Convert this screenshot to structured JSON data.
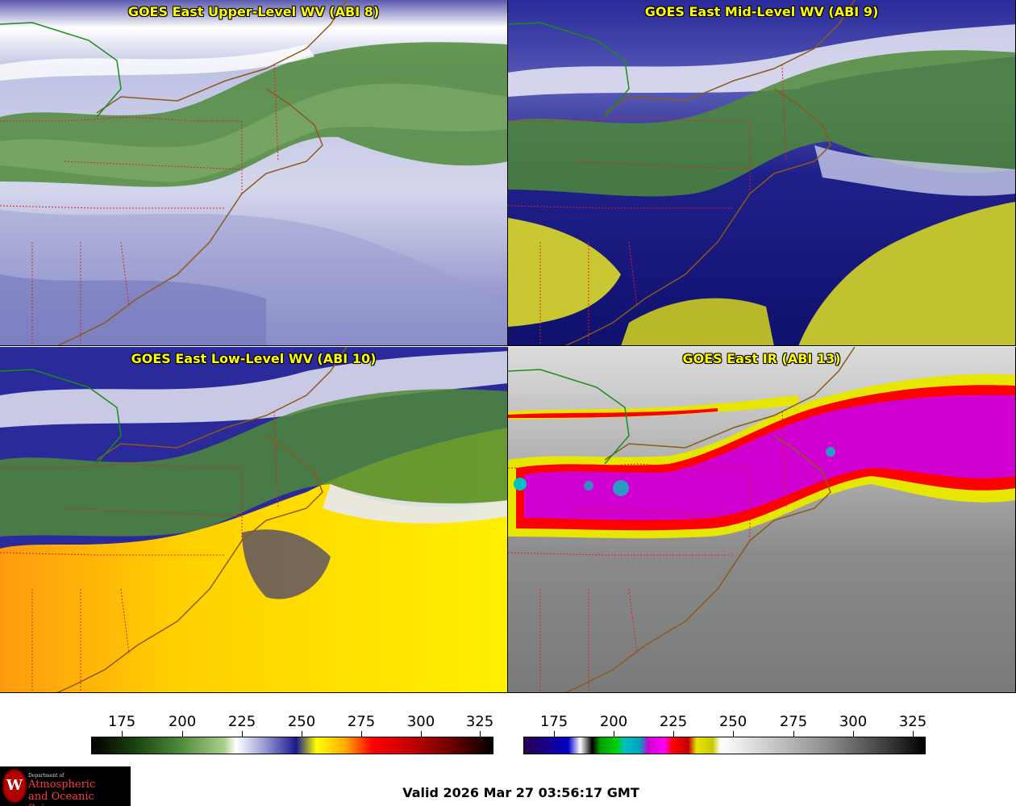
{
  "panels": [
    {
      "title": "GOES East Upper-Level WV (ABI 8)"
    },
    {
      "title": "GOES East Mid-Level WV (ABI 9)"
    },
    {
      "title": "GOES East Low-Level WV (ABI 10)"
    },
    {
      "title": "GOES East IR (ABI 13)"
    }
  ],
  "colorbars": {
    "wv": {
      "ticks": [
        "175",
        "200",
        "225",
        "250",
        "275",
        "300",
        "325"
      ]
    },
    "ir": {
      "ticks": [
        "175",
        "200",
        "225",
        "250",
        "275",
        "300",
        "325"
      ]
    }
  },
  "logo": {
    "line1": "Department of",
    "line2": "Atmospheric",
    "line3": "and Oceanic Sciences",
    "seal": "W"
  },
  "valid_time": "Valid 2026 Mar 27 03:56:17 GMT",
  "colors": {
    "border_line": "#8b5a1a",
    "state_line": "#e02020",
    "wv_bar": [
      "#000000",
      "#2d6b1d",
      "#a8d08a",
      "#ffffff",
      "#1a1a8c",
      "#ffff00",
      "#ff8c00",
      "#ff0000",
      "#8b0000",
      "#000000"
    ],
    "ir_bar": [
      "#2a0050",
      "#0000c8",
      "#ffffff",
      "#000000",
      "#00c000",
      "#00c0c0",
      "#d000d0",
      "#ff0000",
      "#e6e600",
      "#ffffff",
      "#000000"
    ]
  }
}
